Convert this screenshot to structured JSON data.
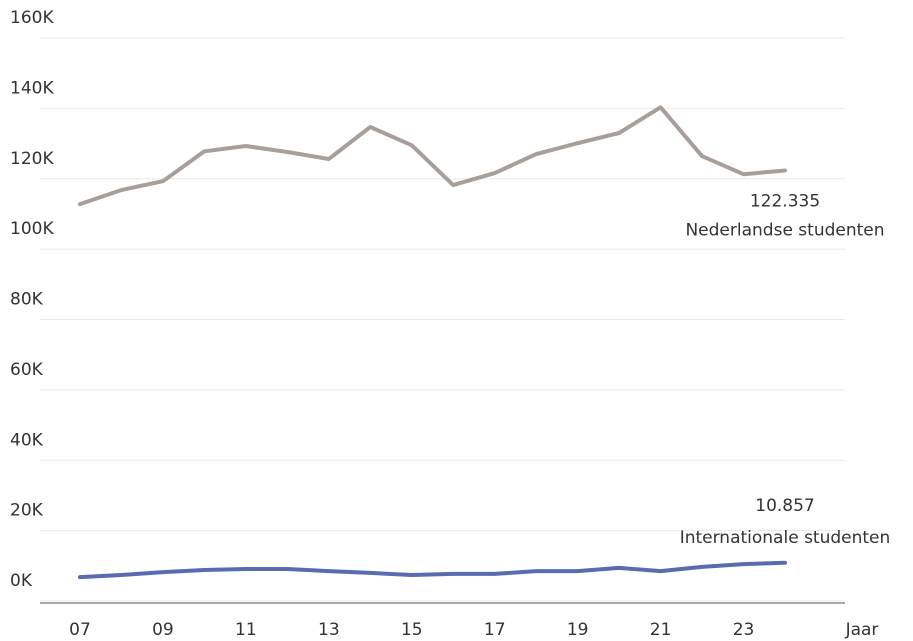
{
  "chart_data": {
    "type": "line",
    "x_label": "Jaar",
    "categories": [
      "07",
      null,
      "09",
      null,
      "11",
      null,
      "13",
      null,
      "15",
      null,
      "17",
      null,
      "19",
      null,
      "21",
      null,
      "23",
      null
    ],
    "series": [
      {
        "name": "Nederlandse studenten",
        "color": "#a89f9b",
        "values": [
          112800,
          116800,
          119300,
          127800,
          129300,
          127600,
          125600,
          134700,
          129500,
          118200,
          121600,
          127000,
          130100,
          133000,
          140300,
          126400,
          121300,
          122335
        ],
        "value_labels": [
          null,
          null,
          null,
          null,
          null,
          null,
          null,
          null,
          null,
          null,
          null,
          null,
          null,
          null,
          null,
          null,
          null,
          "122.335"
        ]
      },
      {
        "name": "Internationale studenten",
        "color": "#5b6bb0",
        "values": [
          6800,
          7400,
          8200,
          8800,
          9100,
          9100,
          8500,
          8000,
          7400,
          7700,
          7700,
          8500,
          8500,
          9400,
          8500,
          9700,
          10500,
          10857
        ],
        "value_labels": [
          null,
          null,
          null,
          null,
          null,
          null,
          null,
          null,
          null,
          null,
          null,
          null,
          null,
          null,
          null,
          null,
          null,
          "10.857"
        ]
      }
    ],
    "ylim": [
      0,
      160000
    ],
    "yticks": [
      {
        "value": 0,
        "label": "0K"
      },
      {
        "value": 20000,
        "label": "20K"
      },
      {
        "value": 40000,
        "label": "40K"
      },
      {
        "value": 60000,
        "label": "60K"
      },
      {
        "value": 80000,
        "label": "80K"
      },
      {
        "value": 100000,
        "label": "100K"
      },
      {
        "value": 120000,
        "label": "120K"
      },
      {
        "value": 140000,
        "label": "140K"
      },
      {
        "value": 160000,
        "label": "160K"
      }
    ],
    "grid": true
  }
}
